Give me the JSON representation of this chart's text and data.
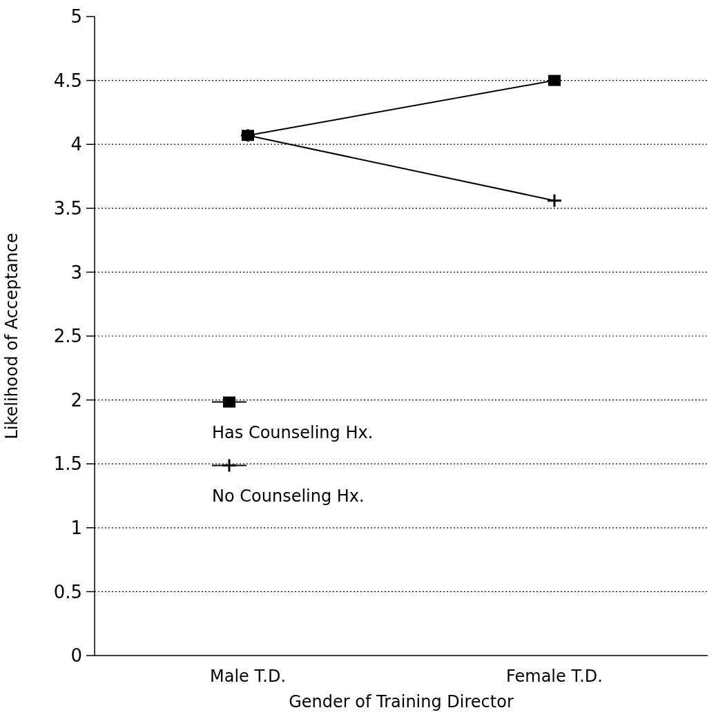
{
  "chart_data": {
    "type": "line",
    "xlabel": "Gender of Training Director",
    "ylabel": "Likelihood of Acceptance",
    "categories": [
      "Male T.D.",
      "Female T.D."
    ],
    "ylim": [
      0,
      5
    ],
    "yticks": [
      0,
      0.5,
      1,
      1.5,
      2,
      2.5,
      3,
      3.5,
      4,
      4.5,
      5
    ],
    "grid": "y",
    "legend": "bottom left",
    "line_style": "solid",
    "series": [
      {
        "name": "Has Counseling Hx.",
        "color": "#000000",
        "marker": "square",
        "values": [
          4.07,
          4.5
        ]
      },
      {
        "name": "No Counseling Hx.",
        "color": "#000000",
        "marker": "cross",
        "values": [
          4.07,
          3.56
        ]
      }
    ]
  }
}
